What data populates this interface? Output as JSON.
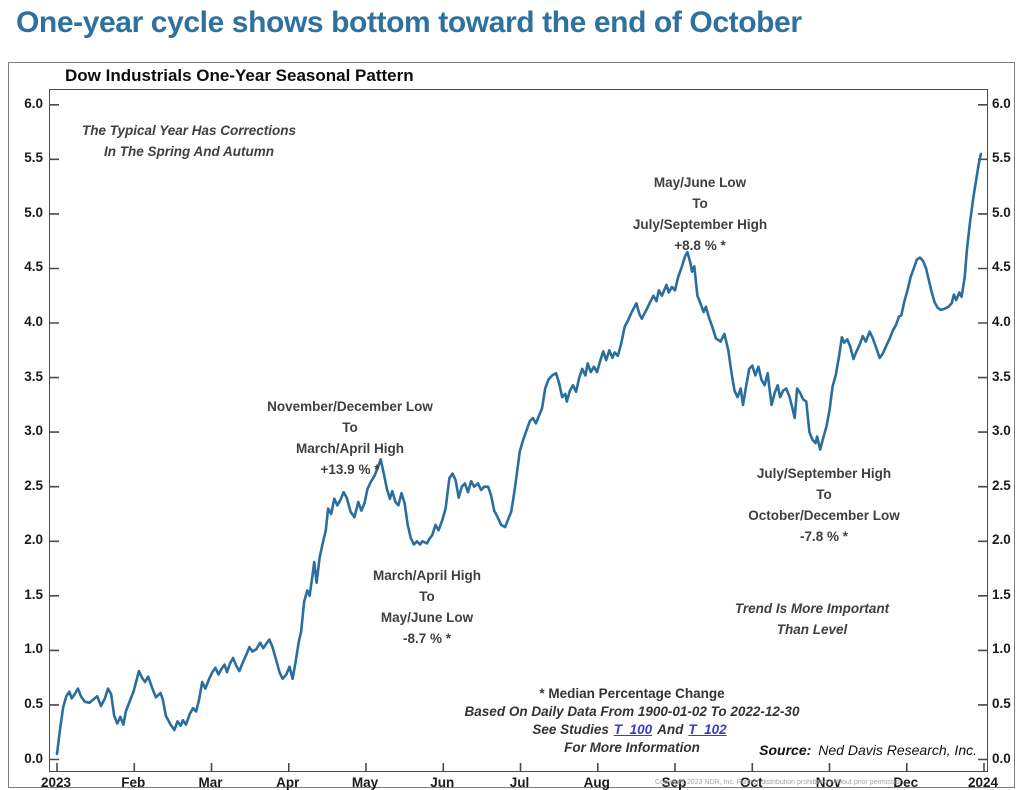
{
  "page": {
    "title": "One-year cycle shows bottom toward the end of October"
  },
  "panel": {
    "title": "Dow Industrials One-Year Seasonal Pattern"
  },
  "annotations": {
    "typical_year": "The Typical Year Has Corrections\nIn The Spring And Autumn",
    "may_june_low": "May/June Low\nTo\nJuly/September High\n+8.8 % *",
    "nov_dec_low": "November/December Low\nTo\nMarch/April High\n+13.9 % *",
    "mar_apr_high": "March/April High\nTo\nMay/June Low\n-8.7 % *",
    "jul_sep_high": "July/September High\nTo\nOctober/December Low\n-7.8 % *",
    "trend": "Trend Is More Important\nThan Level"
  },
  "footnote": {
    "line1": "* Median Percentage Change",
    "line2": "Based On Daily Data From 1900-01-02 To 2022-12-30",
    "line3_prefix": "See Studies",
    "link1": "T_100",
    "line3_mid": "And",
    "link2": "T_102",
    "line4": "For More Information"
  },
  "source": {
    "label": "Source:",
    "text": "Ned Davis Research, Inc."
  },
  "copyright": "Copyright 2023 NDR, Inc. Further distribution prohibited without prior permission.",
  "colors": {
    "accent_blue": "#2e719f",
    "line": "#2a6e9e",
    "link": "#3a3acc",
    "frame": "#4a4a4a"
  },
  "chart_data": {
    "type": "line",
    "title": "Dow Industrials One-Year Seasonal Pattern",
    "xlabel": "",
    "ylabel": "",
    "x_unit": "month index (0 = Jan 2023 ... 12 = Jan 2024)",
    "x_tick_labels": [
      "2023",
      "Feb",
      "Mar",
      "Apr",
      "May",
      "Jun",
      "Jul",
      "Aug",
      "Sep",
      "Oct",
      "Nov",
      "Dec",
      "2024"
    ],
    "y_tick_labels": [
      "6.0",
      "5.5",
      "5.0",
      "4.5",
      "4.0",
      "3.5",
      "3.0",
      "2.5",
      "2.0",
      "1.5",
      "1.0",
      "0.5",
      "0.0"
    ],
    "ylim": [
      0,
      6
    ],
    "grid": false,
    "legend": false,
    "series": [
      {
        "name": "Median cumulative % gain (1900-01-02 to 2022-12-30)",
        "points": [
          [
            0,
            0.05
          ],
          [
            0.04,
            0.28
          ],
          [
            0.08,
            0.48
          ],
          [
            0.12,
            0.58
          ],
          [
            0.16,
            0.62
          ],
          [
            0.19,
            0.56
          ],
          [
            0.23,
            0.6
          ],
          [
            0.27,
            0.65
          ],
          [
            0.31,
            0.58
          ],
          [
            0.36,
            0.53
          ],
          [
            0.42,
            0.52
          ],
          [
            0.47,
            0.55
          ],
          [
            0.52,
            0.58
          ],
          [
            0.57,
            0.49
          ],
          [
            0.62,
            0.56
          ],
          [
            0.66,
            0.65
          ],
          [
            0.7,
            0.6
          ],
          [
            0.74,
            0.4
          ],
          [
            0.78,
            0.33
          ],
          [
            0.82,
            0.39
          ],
          [
            0.86,
            0.32
          ],
          [
            0.89,
            0.44
          ],
          [
            0.95,
            0.55
          ],
          [
            0.99,
            0.62
          ],
          [
            1.02,
            0.7
          ],
          [
            1.06,
            0.81
          ],
          [
            1.1,
            0.75
          ],
          [
            1.14,
            0.71
          ],
          [
            1.18,
            0.76
          ],
          [
            1.23,
            0.66
          ],
          [
            1.28,
            0.57
          ],
          [
            1.34,
            0.61
          ],
          [
            1.37,
            0.55
          ],
          [
            1.41,
            0.4
          ],
          [
            1.47,
            0.32
          ],
          [
            1.52,
            0.27
          ],
          [
            1.56,
            0.35
          ],
          [
            1.6,
            0.31
          ],
          [
            1.63,
            0.36
          ],
          [
            1.67,
            0.32
          ],
          [
            1.72,
            0.42
          ],
          [
            1.76,
            0.47
          ],
          [
            1.8,
            0.44
          ],
          [
            1.84,
            0.55
          ],
          [
            1.88,
            0.71
          ],
          [
            1.92,
            0.65
          ],
          [
            1.97,
            0.74
          ],
          [
            2.01,
            0.8
          ],
          [
            2.05,
            0.84
          ],
          [
            2.09,
            0.78
          ],
          [
            2.13,
            0.83
          ],
          [
            2.17,
            0.87
          ],
          [
            2.2,
            0.8
          ],
          [
            2.24,
            0.88
          ],
          [
            2.28,
            0.93
          ],
          [
            2.32,
            0.86
          ],
          [
            2.36,
            0.81
          ],
          [
            2.4,
            0.88
          ],
          [
            2.45,
            0.96
          ],
          [
            2.49,
            1.03
          ],
          [
            2.53,
            0.99
          ],
          [
            2.58,
            1.01
          ],
          [
            2.63,
            1.07
          ],
          [
            2.67,
            1.02
          ],
          [
            2.71,
            1.06
          ],
          [
            2.75,
            1.1
          ],
          [
            2.79,
            1.03
          ],
          [
            2.83,
            0.93
          ],
          [
            2.88,
            0.8
          ],
          [
            2.92,
            0.74
          ],
          [
            2.97,
            0.78
          ],
          [
            3.01,
            0.85
          ],
          [
            3.05,
            0.74
          ],
          [
            3.09,
            0.9
          ],
          [
            3.13,
            1.08
          ],
          [
            3.16,
            1.17
          ],
          [
            3.2,
            1.45
          ],
          [
            3.24,
            1.55
          ],
          [
            3.27,
            1.5
          ],
          [
            3.31,
            1.7
          ],
          [
            3.33,
            1.81
          ],
          [
            3.36,
            1.62
          ],
          [
            3.4,
            1.85
          ],
          [
            3.44,
            1.98
          ],
          [
            3.48,
            2.1
          ],
          [
            3.51,
            2.3
          ],
          [
            3.55,
            2.25
          ],
          [
            3.59,
            2.39
          ],
          [
            3.63,
            2.33
          ],
          [
            3.67,
            2.38
          ],
          [
            3.71,
            2.45
          ],
          [
            3.75,
            2.4
          ],
          [
            3.8,
            2.27
          ],
          [
            3.85,
            2.22
          ],
          [
            3.9,
            2.36
          ],
          [
            3.94,
            2.28
          ],
          [
            3.98,
            2.35
          ],
          [
            4.02,
            2.48
          ],
          [
            4.06,
            2.54
          ],
          [
            4.11,
            2.6
          ],
          [
            4.15,
            2.67
          ],
          [
            4.19,
            2.75
          ],
          [
            4.23,
            2.62
          ],
          [
            4.27,
            2.48
          ],
          [
            4.31,
            2.39
          ],
          [
            4.34,
            2.46
          ],
          [
            4.38,
            2.36
          ],
          [
            4.42,
            2.33
          ],
          [
            4.46,
            2.44
          ],
          [
            4.5,
            2.35
          ],
          [
            4.54,
            2.15
          ],
          [
            4.58,
            2.03
          ],
          [
            4.62,
            1.97
          ],
          [
            4.66,
            2
          ],
          [
            4.7,
            1.97
          ],
          [
            4.73,
            2
          ],
          [
            4.79,
            1.98
          ],
          [
            4.82,
            2.02
          ],
          [
            4.86,
            2.06
          ],
          [
            4.9,
            2.15
          ],
          [
            4.94,
            2.1
          ],
          [
            4.99,
            2.2
          ],
          [
            5.03,
            2.3
          ],
          [
            5.08,
            2.58
          ],
          [
            5.12,
            2.62
          ],
          [
            5.16,
            2.56
          ],
          [
            5.2,
            2.4
          ],
          [
            5.24,
            2.5
          ],
          [
            5.28,
            2.53
          ],
          [
            5.32,
            2.45
          ],
          [
            5.36,
            2.55
          ],
          [
            5.4,
            2.5
          ],
          [
            5.45,
            2.53
          ],
          [
            5.49,
            2.47
          ],
          [
            5.53,
            2.5
          ],
          [
            5.58,
            2.5
          ],
          [
            5.62,
            2.42
          ],
          [
            5.66,
            2.28
          ],
          [
            5.69,
            2.24
          ],
          [
            5.75,
            2.15
          ],
          [
            5.8,
            2.13
          ],
          [
            5.84,
            2.2
          ],
          [
            5.88,
            2.27
          ],
          [
            5.91,
            2.4
          ],
          [
            5.95,
            2.6
          ],
          [
            5.99,
            2.82
          ],
          [
            6.03,
            2.92
          ],
          [
            6.07,
            3
          ],
          [
            6.12,
            3.1
          ],
          [
            6.16,
            3.13
          ],
          [
            6.2,
            3.08
          ],
          [
            6.24,
            3.15
          ],
          [
            6.28,
            3.22
          ],
          [
            6.32,
            3.4
          ],
          [
            6.36,
            3.48
          ],
          [
            6.41,
            3.52
          ],
          [
            6.46,
            3.54
          ],
          [
            6.5,
            3.45
          ],
          [
            6.54,
            3.32
          ],
          [
            6.58,
            3.35
          ],
          [
            6.6,
            3.28
          ],
          [
            6.64,
            3.38
          ],
          [
            6.68,
            3.43
          ],
          [
            6.72,
            3.37
          ],
          [
            6.76,
            3.5
          ],
          [
            6.8,
            3.58
          ],
          [
            6.84,
            3.52
          ],
          [
            6.87,
            3.63
          ],
          [
            6.91,
            3.55
          ],
          [
            6.95,
            3.6
          ],
          [
            6.99,
            3.55
          ],
          [
            7.03,
            3.65
          ],
          [
            7.07,
            3.74
          ],
          [
            7.11,
            3.66
          ],
          [
            7.15,
            3.75
          ],
          [
            7.19,
            3.68
          ],
          [
            7.22,
            3.73
          ],
          [
            7.26,
            3.7
          ],
          [
            7.3,
            3.8
          ],
          [
            7.35,
            3.97
          ],
          [
            7.39,
            4.02
          ],
          [
            7.44,
            4.1
          ],
          [
            7.5,
            4.18
          ],
          [
            7.54,
            4.08
          ],
          [
            7.57,
            4.04
          ],
          [
            7.63,
            4.12
          ],
          [
            7.67,
            4.18
          ],
          [
            7.72,
            4.25
          ],
          [
            7.76,
            4.2
          ],
          [
            7.79,
            4.3
          ],
          [
            7.83,
            4.25
          ],
          [
            7.89,
            4.35
          ],
          [
            7.92,
            4.28
          ],
          [
            7.96,
            4.33
          ],
          [
            8,
            4.3
          ],
          [
            8.04,
            4.42
          ],
          [
            8.09,
            4.52
          ],
          [
            8.13,
            4.61
          ],
          [
            8.16,
            4.65
          ],
          [
            8.2,
            4.55
          ],
          [
            8.22,
            4.47
          ],
          [
            8.25,
            4.52
          ],
          [
            8.29,
            4.25
          ],
          [
            8.33,
            4.18
          ],
          [
            8.37,
            4.1
          ],
          [
            8.4,
            4.15
          ],
          [
            8.44,
            4.05
          ],
          [
            8.48,
            3.97
          ],
          [
            8.53,
            3.86
          ],
          [
            8.59,
            3.83
          ],
          [
            8.64,
            3.9
          ],
          [
            8.69,
            3.75
          ],
          [
            8.73,
            3.55
          ],
          [
            8.77,
            3.38
          ],
          [
            8.81,
            3.32
          ],
          [
            8.85,
            3.4
          ],
          [
            8.88,
            3.25
          ],
          [
            8.92,
            3.42
          ],
          [
            8.96,
            3.58
          ],
          [
            9,
            3.61
          ],
          [
            9.04,
            3.52
          ],
          [
            9.08,
            3.6
          ],
          [
            9.12,
            3.48
          ],
          [
            9.16,
            3.43
          ],
          [
            9.2,
            3.54
          ],
          [
            9.22,
            3.42
          ],
          [
            9.25,
            3.25
          ],
          [
            9.29,
            3.36
          ],
          [
            9.33,
            3.43
          ],
          [
            9.36,
            3.32
          ],
          [
            9.4,
            3.38
          ],
          [
            9.44,
            3.4
          ],
          [
            9.48,
            3.33
          ],
          [
            9.52,
            3.22
          ],
          [
            9.55,
            3.13
          ],
          [
            9.58,
            3.4
          ],
          [
            9.62,
            3.36
          ],
          [
            9.66,
            3.3
          ],
          [
            9.7,
            3.28
          ],
          [
            9.74,
            3
          ],
          [
            9.78,
            2.93
          ],
          [
            9.82,
            2.9
          ],
          [
            9.84,
            2.96
          ],
          [
            9.88,
            2.84
          ],
          [
            9.92,
            2.95
          ],
          [
            9.96,
            3.05
          ],
          [
            10,
            3.2
          ],
          [
            10.04,
            3.42
          ],
          [
            10.08,
            3.52
          ],
          [
            10.12,
            3.68
          ],
          [
            10.16,
            3.87
          ],
          [
            10.19,
            3.82
          ],
          [
            10.23,
            3.85
          ],
          [
            10.27,
            3.78
          ],
          [
            10.31,
            3.67
          ],
          [
            10.35,
            3.74
          ],
          [
            10.39,
            3.8
          ],
          [
            10.43,
            3.88
          ],
          [
            10.47,
            3.83
          ],
          [
            10.52,
            3.92
          ],
          [
            10.56,
            3.86
          ],
          [
            10.6,
            3.78
          ],
          [
            10.65,
            3.68
          ],
          [
            10.69,
            3.72
          ],
          [
            10.74,
            3.8
          ],
          [
            10.78,
            3.86
          ],
          [
            10.82,
            3.93
          ],
          [
            10.86,
            3.98
          ],
          [
            10.9,
            4.06
          ],
          [
            10.93,
            4.07
          ],
          [
            10.97,
            4.2
          ],
          [
            11.01,
            4.3
          ],
          [
            11.05,
            4.42
          ],
          [
            11.09,
            4.5
          ],
          [
            11.13,
            4.58
          ],
          [
            11.17,
            4.6
          ],
          [
            11.21,
            4.57
          ],
          [
            11.25,
            4.5
          ],
          [
            11.28,
            4.41
          ],
          [
            11.32,
            4.29
          ],
          [
            11.36,
            4.19
          ],
          [
            11.4,
            4.14
          ],
          [
            11.44,
            4.12
          ],
          [
            11.49,
            4.13
          ],
          [
            11.54,
            4.15
          ],
          [
            11.58,
            4.18
          ],
          [
            11.61,
            4.26
          ],
          [
            11.64,
            4.21
          ],
          [
            11.68,
            4.28
          ],
          [
            11.71,
            4.24
          ],
          [
            11.75,
            4.42
          ],
          [
            11.78,
            4.68
          ],
          [
            11.82,
            4.93
          ],
          [
            11.86,
            5.14
          ],
          [
            11.9,
            5.32
          ],
          [
            11.93,
            5.45
          ],
          [
            11.96,
            5.55
          ]
        ]
      }
    ]
  }
}
